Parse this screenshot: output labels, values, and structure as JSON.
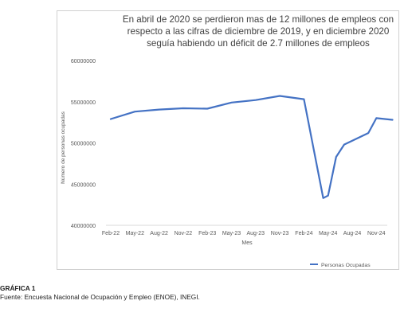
{
  "chart_data": {
    "type": "line",
    "title": "En abril de 2020 se perdieron mas de 12 millones de empleos con respecto a las cifras de diciembre de 2019, y en diciembre 2020 seguía habiendo un déficit de 2.7 millones de empleos",
    "xlabel": "Mes",
    "ylabel": "Número de personas ocupadas",
    "ylim": [
      40000000,
      60000000
    ],
    "yticks": [
      40000000,
      45000000,
      50000000,
      55000000,
      60000000
    ],
    "ytick_labels": [
      "40000000",
      "45000000",
      "50000000",
      "55000000",
      "60000000"
    ],
    "xtick_labels": [
      "Feb-22",
      "May-22",
      "Aug-22",
      "Nov-22",
      "Feb-23",
      "May-23",
      "Aug-23",
      "Nov-23",
      "Feb-24",
      "May-24",
      "Aug-24",
      "Nov-24"
    ],
    "grid": false,
    "legend_position": "bottom-right",
    "series": [
      {
        "name": "Personas Ocupadas",
        "color": "#4472c4",
        "points": [
          {
            "x": "Feb-22",
            "y": 52900000
          },
          {
            "x": "May-22",
            "y": 53800000
          },
          {
            "x": "Aug-22",
            "y": 54050000
          },
          {
            "x": "Nov-22",
            "y": 54200000
          },
          {
            "x": "Feb-23",
            "y": 54150000
          },
          {
            "x": "May-23",
            "y": 54900000
          },
          {
            "x": "Aug-23",
            "y": 55200000
          },
          {
            "x": "Nov-23",
            "y": 55700000
          },
          {
            "x": "Feb-24",
            "y": 55300000
          },
          {
            "x": "May-24 (early)",
            "y": 43300000
          },
          {
            "x": "May-24",
            "y": 43600000
          },
          {
            "x": "Jun-24",
            "y": 48300000
          },
          {
            "x": "Jul-24",
            "y": 49800000
          },
          {
            "x": "Oct-24",
            "y": 51200000
          },
          {
            "x": "Nov-24",
            "y": 53000000
          },
          {
            "x": "Jan-25",
            "y": 52800000
          }
        ]
      }
    ]
  },
  "caption": {
    "label": "GRÁFICA 1",
    "source": "Fuente: Encuesta Nacional de Ocupación y Empleo (ENOE), INEGI."
  }
}
